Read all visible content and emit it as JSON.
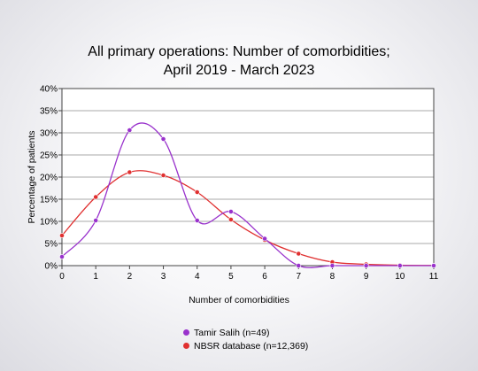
{
  "chart_data": {
    "type": "line",
    "title_line1": "All primary operations: Number of comorbidities;",
    "title_line2": "April 2019 - March 2023",
    "xlabel": "Number of comorbidities",
    "ylabel": "Percentage of patients",
    "x": [
      0,
      1,
      2,
      3,
      4,
      5,
      6,
      7,
      8,
      9,
      10,
      11
    ],
    "xlim": [
      0,
      11
    ],
    "ylim": [
      0,
      40
    ],
    "yticks": [
      "0%",
      "5%",
      "10%",
      "15%",
      "20%",
      "25%",
      "30%",
      "35%",
      "40%"
    ],
    "ytick_values": [
      0,
      5,
      10,
      15,
      20,
      25,
      30,
      35,
      40
    ],
    "grid": true,
    "legend_position": "bottom-center",
    "series": [
      {
        "name": "Tamir Salih (n=49)",
        "color": "#9932cc",
        "values": [
          2.0,
          10.2,
          30.6,
          28.6,
          10.2,
          12.2,
          6.1,
          0,
          0,
          0,
          0,
          0
        ]
      },
      {
        "name": "NBSR database (n=12,369)",
        "color": "#e03030",
        "values": [
          6.8,
          15.5,
          21.1,
          20.4,
          16.6,
          10.4,
          5.8,
          2.7,
          0.8,
          0.3,
          0.1,
          0.05
        ]
      }
    ]
  }
}
